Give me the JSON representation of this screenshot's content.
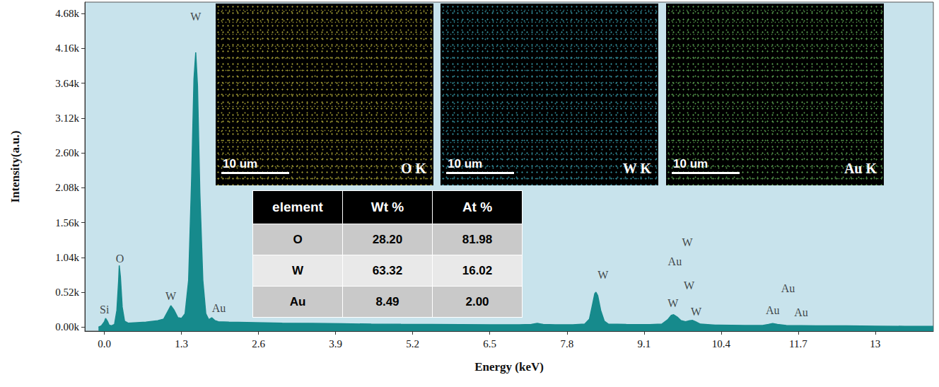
{
  "chart_data": {
    "type": "area",
    "x_label": "Energy (keV)",
    "y_label": "Intensity(a.u.)",
    "color": "#168a8c",
    "grid": false,
    "xlim": [
      -0.33,
      13.98
    ],
    "xticks": [
      {
        "value": 0,
        "label": "0.0"
      },
      1.3,
      2.6,
      3.9,
      5.2,
      6.5,
      7.8,
      9.1,
      10.4,
      11.7,
      13
    ],
    "ylim": [
      -60,
      4850
    ],
    "yticks": [
      {
        "value": 0,
        "label": "0.00k"
      },
      {
        "value": 520,
        "label": "0.52k"
      },
      {
        "value": 1040,
        "label": "1.04k"
      },
      {
        "value": 1560,
        "label": "1.56k"
      },
      {
        "value": 2080,
        "label": "2.08k"
      },
      {
        "value": 2600,
        "label": "2.60k"
      },
      {
        "value": 3120,
        "label": "3.12k"
      },
      {
        "value": 3640,
        "label": "3.64k"
      },
      {
        "value": 4160,
        "label": "4.16k"
      },
      {
        "value": 4680,
        "label": "4.68k"
      }
    ],
    "x": [
      -0.1,
      -0.05,
      0.0,
      0.02,
      0.05,
      0.08,
      0.12,
      0.17,
      0.21,
      0.24,
      0.25,
      0.27,
      0.3,
      0.34,
      0.4,
      0.5,
      0.6,
      0.7,
      0.8,
      0.9,
      1.0,
      1.06,
      1.12,
      1.17,
      1.24,
      1.3,
      1.36,
      1.42,
      1.47,
      1.51,
      1.54,
      1.57,
      1.61,
      1.66,
      1.71,
      1.76,
      1.81,
      1.86,
      1.92,
      2.1,
      2.4,
      2.7,
      3.0,
      3.5,
      4.0,
      4.5,
      5.0,
      5.5,
      6.0,
      6.5,
      7.0,
      7.2,
      7.3,
      7.4,
      7.6,
      7.9,
      8.1,
      8.18,
      8.23,
      8.27,
      8.29,
      8.32,
      8.37,
      8.43,
      8.5,
      8.8,
      9.2,
      9.4,
      9.5,
      9.56,
      9.6,
      9.66,
      9.72,
      9.8,
      9.87,
      9.92,
      9.97,
      10.05,
      10.3,
      10.8,
      11.1,
      11.2,
      11.27,
      11.35,
      11.5,
      12.0,
      12.5,
      13.0,
      13.5,
      13.98
    ],
    "values": [
      0,
      20,
      80,
      130,
      90,
      30,
      20,
      40,
      250,
      700,
      920,
      750,
      300,
      90,
      60,
      65,
      70,
      75,
      85,
      95,
      120,
      220,
      320,
      260,
      140,
      130,
      200,
      700,
      2200,
      3700,
      4100,
      3600,
      2000,
      700,
      200,
      110,
      140,
      100,
      80,
      75,
      70,
      65,
      60,
      55,
      50,
      45,
      42,
      40,
      38,
      36,
      35,
      40,
      55,
      40,
      35,
      35,
      45,
      120,
      330,
      500,
      520,
      470,
      250,
      90,
      45,
      40,
      38,
      45,
      110,
      175,
      185,
      150,
      100,
      80,
      95,
      100,
      80,
      45,
      30,
      25,
      25,
      40,
      55,
      40,
      25,
      20,
      18,
      15,
      12,
      10
    ],
    "annotations": [
      {
        "text": "Si",
        "x": 0.0,
        "y": 264
      },
      {
        "text": "O",
        "x": 0.26,
        "y": 1025
      },
      {
        "text": "W",
        "x": 1.12,
        "y": 465
      },
      {
        "text": "W",
        "x": 1.54,
        "y": 4630
      },
      {
        "text": "Au",
        "x": 1.93,
        "y": 285
      },
      {
        "text": "W",
        "x": 8.41,
        "y": 782
      },
      {
        "text": "Au",
        "x": 9.62,
        "y": 983
      },
      {
        "text": "W",
        "x": 9.83,
        "y": 1268
      },
      {
        "text": "W",
        "x": 9.86,
        "y": 624
      },
      {
        "text": "W",
        "x": 9.59,
        "y": 359
      },
      {
        "text": "W",
        "x": 9.98,
        "y": 232
      },
      {
        "text": "Au",
        "x": 11.53,
        "y": 581
      },
      {
        "text": "Au",
        "x": 11.27,
        "y": 254
      },
      {
        "text": "Au",
        "x": 11.75,
        "y": 222
      }
    ]
  },
  "maps": [
    {
      "label": "O K",
      "scale_bar": "10 um",
      "color": "#c8c040"
    },
    {
      "label": "W K",
      "scale_bar": "10 um",
      "color": "#3fb0c0"
    },
    {
      "label": "Au K",
      "scale_bar": "10 um",
      "color": "#6cc060"
    }
  ],
  "table": {
    "columns": [
      "element",
      "Wt %",
      "At %"
    ],
    "rows": [
      [
        "O",
        "28.20",
        "81.98"
      ],
      [
        "W",
        "63.32",
        "16.02"
      ],
      [
        "Au",
        "8.49",
        "2.00"
      ]
    ]
  }
}
